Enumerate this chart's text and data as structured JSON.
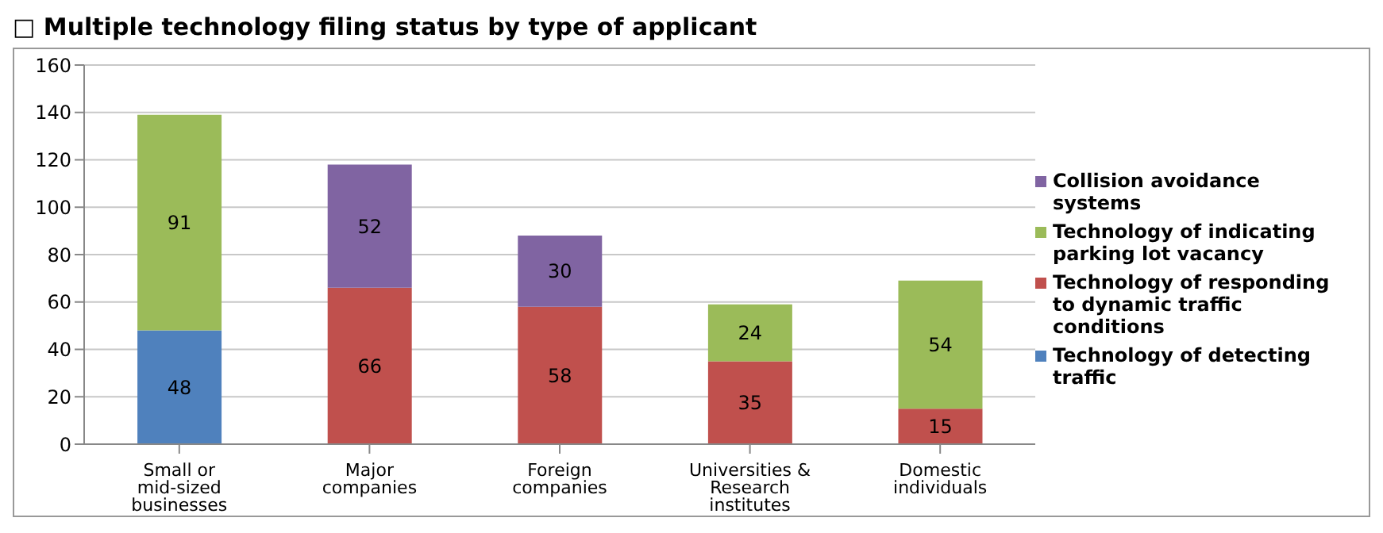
{
  "chart_data": {
    "type": "bar",
    "title": "□  Multiple technology filing status by type of applicant",
    "categories": [
      "Small or mid-sized businesses",
      "Major companies",
      "Foreign companies",
      "Universities & Research institutes",
      "Domestic individuals"
    ],
    "stacked": true,
    "series": [
      {
        "name": "Technology of detecting traffic",
        "color": "#4f81bd",
        "values": [
          48,
          null,
          null,
          null,
          null
        ]
      },
      {
        "name": "Technology of responding to dynamic traffic conditions",
        "color": "#c0504d",
        "values": [
          null,
          66,
          58,
          35,
          15
        ]
      },
      {
        "name": "Technology of indicating parking lot vacancy",
        "color": "#9bbb59",
        "values": [
          91,
          null,
          null,
          24,
          54
        ]
      },
      {
        "name": "Collision avoidance systems",
        "color": "#8064a2",
        "values": [
          null,
          52,
          30,
          null,
          null
        ]
      }
    ],
    "ylim": [
      0,
      160
    ],
    "yticks": [
      0,
      20,
      40,
      60,
      80,
      100,
      120,
      140,
      160
    ],
    "grid": "y",
    "legend": "right",
    "data_labels": true
  }
}
